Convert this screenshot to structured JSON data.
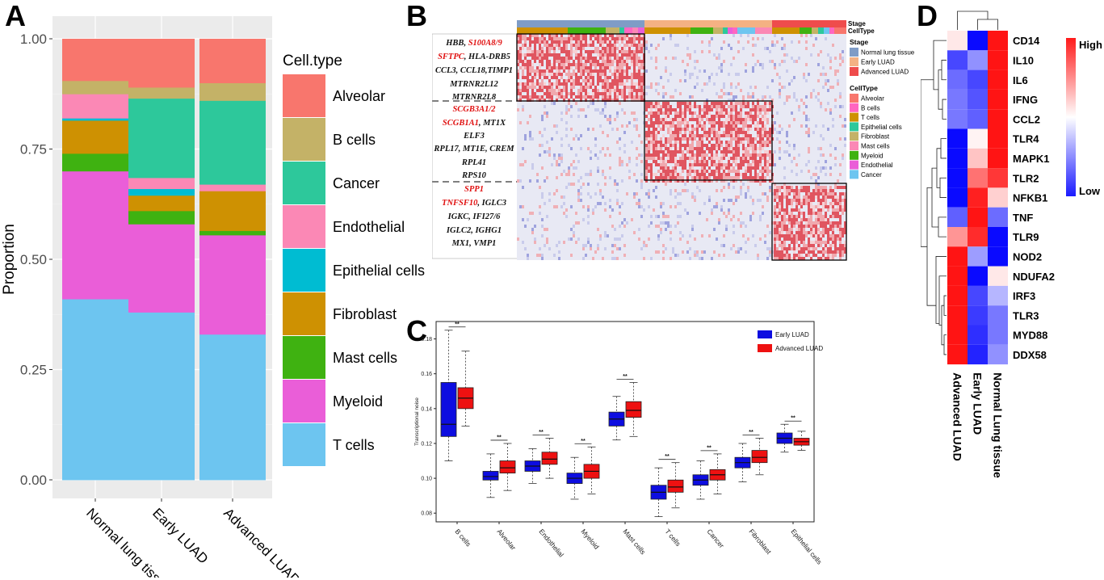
{
  "panels": {
    "a": "A",
    "b": "B",
    "c": "C",
    "d": "D"
  },
  "chart_data": [
    {
      "panel": "A",
      "type": "bar",
      "stacked": true,
      "categories": [
        "Normal lung tissue",
        "Early LUAD",
        "Advanced LUAD"
      ],
      "ylabel": "Proportion",
      "ylim": [
        0,
        1
      ],
      "yticks": [
        "0.00",
        "0.25",
        "0.50",
        "0.75",
        "1.00"
      ],
      "legend_title": "Cell.type",
      "series": [
        {
          "name": "T cells",
          "color": "#6DC5F0",
          "values": [
            0.41,
            0.38,
            0.33
          ]
        },
        {
          "name": "Myeloid",
          "color": "#EA5ED8",
          "values": [
            0.29,
            0.2,
            0.225
          ]
        },
        {
          "name": "Mast cells",
          "color": "#3FB211",
          "values": [
            0.04,
            0.03,
            0.01
          ]
        },
        {
          "name": "Fibroblast",
          "color": "#CE9102",
          "values": [
            0.075,
            0.035,
            0.09
          ]
        },
        {
          "name": "Epithelial cells",
          "color": "#00BCD2",
          "values": [
            0.005,
            0.015,
            0.0
          ]
        },
        {
          "name": "Endothelial",
          "color": "#FB88B5",
          "values": [
            0.055,
            0.025,
            0.015
          ]
        },
        {
          "name": "Cancer",
          "color": "#2DC89B",
          "values": [
            0.0,
            0.18,
            0.19
          ]
        },
        {
          "name": "B cells",
          "color": "#C4B267",
          "values": [
            0.03,
            0.025,
            0.04
          ]
        },
        {
          "name": "Alveolar",
          "color": "#F8766D",
          "values": [
            0.095,
            0.11,
            0.1
          ]
        }
      ],
      "legend_order": [
        "Alveolar",
        "B cells",
        "Cancer",
        "Endothelial",
        "Epithelial cells",
        "Fibroblast",
        "Mast cells",
        "Myeloid",
        "T cells"
      ]
    },
    {
      "panel": "B",
      "type": "heatmap",
      "annotations": [
        "Stage",
        "CellType"
      ],
      "legend_stage_title": "Stage",
      "legend_stage": [
        {
          "name": "Normal lung tissue",
          "color": "#7F9CC6"
        },
        {
          "name": "Early LUAD",
          "color": "#F4B183"
        },
        {
          "name": "Advanced LUAD",
          "color": "#EF4C4C"
        }
      ],
      "legend_celltype_title": "CellType",
      "legend_celltype": [
        {
          "name": "Alveolar",
          "color": "#F8766D"
        },
        {
          "name": "B cells",
          "color": "#FF66C1"
        },
        {
          "name": "T cells",
          "color": "#CE9102"
        },
        {
          "name": "Epithelial cells",
          "color": "#2DC89B"
        },
        {
          "name": "Fibroblast",
          "color": "#C4B267"
        },
        {
          "name": "Mast cells",
          "color": "#FB88B5"
        },
        {
          "name": "Myeloid",
          "color": "#3FB211"
        },
        {
          "name": "Endothelial",
          "color": "#EA5ED8"
        },
        {
          "name": "Cancer",
          "color": "#6DC5F0"
        }
      ],
      "gene_groups": [
        [
          [
            {
              "t": "HBB, ",
              "red": false
            },
            {
              "t": "S100A8/9",
              "red": true
            }
          ],
          [
            {
              "t": "SFTPC",
              "red": true
            },
            {
              "t": ", HLA-DRB5",
              "red": false
            }
          ],
          [
            {
              "t": "CCL3, CCL18,TIMP1",
              "red": false
            }
          ],
          [
            {
              "t": "MTRNR2L12",
              "red": false
            }
          ],
          [
            {
              "t": "MTRNR2L8",
              "red": false
            }
          ]
        ],
        [
          [
            {
              "t": "SCGB3A1/2",
              "red": true
            }
          ],
          [
            {
              "t": "SCGB1A1",
              "red": true
            },
            {
              "t": ", MT1X",
              "red": false
            }
          ],
          [
            {
              "t": "ELF3",
              "red": false
            }
          ],
          [
            {
              "t": "RPL17, MT1E, CREM",
              "red": false
            }
          ],
          [
            {
              "t": "RPL41",
              "red": false
            }
          ],
          [
            {
              "t": "RPS10",
              "red": false
            }
          ]
        ],
        [
          [
            {
              "t": "SPP1",
              "red": true
            }
          ],
          [
            {
              "t": "TNFSF10",
              "red": true
            },
            {
              "t": ", IGLC3",
              "red": false
            }
          ],
          [
            {
              "t": "IGKC, IFI27/6",
              "red": false
            }
          ],
          [
            {
              "t": "IGLC2, IGHG1",
              "red": false
            }
          ],
          [
            {
              "t": "MX1, VMP1",
              "red": false
            }
          ]
        ]
      ]
    },
    {
      "panel": "C",
      "type": "box",
      "ylabel": "Transcriptional noise",
      "ylim": [
        0.075,
        0.19
      ],
      "yticks": [
        "0.08",
        "0.10",
        "0.12",
        "0.14",
        "0.16",
        "0.18"
      ],
      "significance": "**",
      "categories": [
        "B cells",
        "Alveolar",
        "Endothelial",
        "Myeloid",
        "Mast cells",
        "T cells",
        "Cancer",
        "Fibroblast",
        "Epithelial cells"
      ],
      "series": [
        {
          "name": "Early LUAD",
          "color": "#0D0DE0",
          "stats": [
            [
              0.11,
              0.124,
              0.131,
              0.155,
              0.185
            ],
            [
              0.089,
              0.099,
              0.101,
              0.104,
              0.114
            ],
            [
              0.097,
              0.104,
              0.107,
              0.11,
              0.117
            ],
            [
              0.088,
              0.097,
              0.1,
              0.103,
              0.112
            ],
            [
              0.122,
              0.13,
              0.134,
              0.138,
              0.147
            ],
            [
              0.078,
              0.088,
              0.092,
              0.096,
              0.106
            ],
            [
              0.088,
              0.096,
              0.099,
              0.102,
              0.11
            ],
            [
              0.098,
              0.106,
              0.109,
              0.112,
              0.12
            ],
            [
              0.115,
              0.12,
              0.123,
              0.126,
              0.131
            ]
          ]
        },
        {
          "name": "Advanced LUAD",
          "color": "#EE1111",
          "stats": [
            [
              0.13,
              0.14,
              0.146,
              0.152,
              0.173
            ],
            [
              0.093,
              0.103,
              0.106,
              0.11,
              0.12
            ],
            [
              0.1,
              0.108,
              0.111,
              0.115,
              0.123
            ],
            [
              0.091,
              0.1,
              0.104,
              0.108,
              0.118
            ],
            [
              0.124,
              0.135,
              0.139,
              0.144,
              0.155
            ],
            [
              0.083,
              0.092,
              0.095,
              0.099,
              0.109
            ],
            [
              0.091,
              0.099,
              0.102,
              0.105,
              0.114
            ],
            [
              0.102,
              0.109,
              0.112,
              0.116,
              0.123
            ],
            [
              0.116,
              0.119,
              0.121,
              0.123,
              0.127
            ]
          ]
        }
      ]
    },
    {
      "panel": "D",
      "type": "heatmap",
      "columns": [
        "Advanced LUAD",
        "Early LUAD",
        "Normal Lung tissue"
      ],
      "rows": [
        "CD14",
        "IL10",
        "IL6",
        "IFNG",
        "CCL2",
        "TLR4",
        "MAPK1",
        "TLR2",
        "NFKB1",
        "TNF",
        "TLR9",
        "NOD2",
        "NDUFA2",
        "IRF3",
        "TLR3",
        "MYD88",
        "DDX58"
      ],
      "values": [
        [
          0.1,
          -1.0,
          1.0
        ],
        [
          -0.75,
          -0.45,
          1.0
        ],
        [
          -0.6,
          -0.75,
          1.0
        ],
        [
          -0.55,
          -0.7,
          1.0
        ],
        [
          -0.55,
          -0.65,
          1.0
        ],
        [
          -1.0,
          0.05,
          1.0
        ],
        [
          -1.0,
          0.25,
          1.0
        ],
        [
          -1.0,
          0.6,
          0.85
        ],
        [
          -1.0,
          0.95,
          0.2
        ],
        [
          -0.65,
          1.0,
          -0.6
        ],
        [
          0.45,
          0.9,
          -1.0
        ],
        [
          1.0,
          -0.4,
          -1.0
        ],
        [
          1.0,
          -1.0,
          0.1
        ],
        [
          1.0,
          -0.75,
          -0.3
        ],
        [
          1.0,
          -0.8,
          -0.55
        ],
        [
          1.0,
          -0.85,
          -0.55
        ],
        [
          1.0,
          -0.9,
          -0.45
        ]
      ],
      "scale_high": "High",
      "scale_low": "Low"
    }
  ]
}
